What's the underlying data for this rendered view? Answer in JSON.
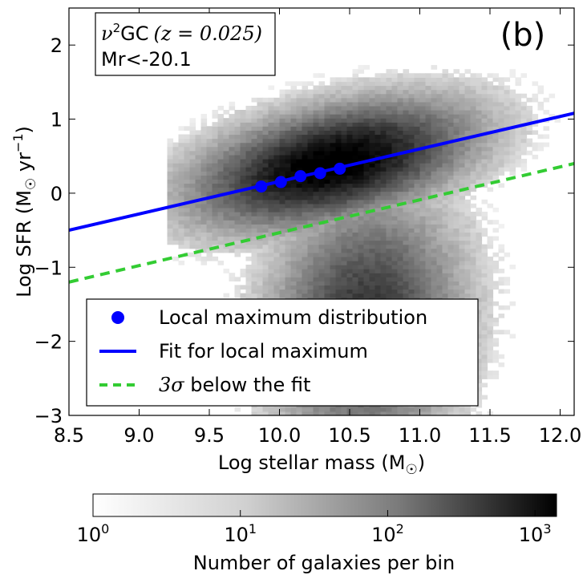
{
  "chart_data": {
    "type": "scatter",
    "panel_label": "(b)",
    "annotation": {
      "line1_nu": "ν",
      "line1_sup": "2",
      "line1_gc": "GC",
      "line1_z": "(z = 0.025)",
      "line2": "Mr<-20.1"
    },
    "xlabel_main": "Log stellar mass (M",
    "xlabel_sun": "☉",
    "xlabel_close": ")",
    "ylabel_main": "Log SFR (M",
    "ylabel_sun": "☉",
    "ylabel_unit": " yr",
    "ylabel_exp": "−1",
    "ylabel_close": ")",
    "xlim": [
      8.5,
      12.1
    ],
    "ylim": [
      -3,
      2.5
    ],
    "x_ticks": [
      "8.5",
      "9.0",
      "9.5",
      "10.0",
      "10.5",
      "11.0",
      "11.5",
      "12.0"
    ],
    "y_ticks": [
      "−3",
      "−2",
      "−1",
      "0",
      "1",
      "2"
    ],
    "series": [
      {
        "name": "Local maximum distribution",
        "kind": "points",
        "color": "#0000ff",
        "x": [
          9.87,
          10.01,
          10.15,
          10.29,
          10.43
        ],
        "y": [
          0.09,
          0.15,
          0.23,
          0.27,
          0.33
        ]
      },
      {
        "name": "Fit for local maximum",
        "kind": "line",
        "color": "#0000ff",
        "x": [
          8.5,
          12.1
        ],
        "y": [
          -0.5,
          1.08
        ]
      },
      {
        "name": "3σ below the fit",
        "kind": "dashed-line",
        "color": "#33cc33",
        "x": [
          8.5,
          12.1
        ],
        "y": [
          -1.2,
          0.4
        ]
      }
    ],
    "legend": {
      "placement": "lower-left",
      "entries": [
        "Local maximum distribution",
        "Fit for local maximum",
        "3σ below the fit"
      ],
      "entry3_sigma": "3σ",
      "entry3_rest": " below the fit"
    },
    "density": {
      "type": "heatmap",
      "colormap": "Greys",
      "scale": "log",
      "colorbar_label": "Number of galaxies per bin",
      "colorbar_ticks": [
        {
          "base": "10",
          "exp": "0"
        },
        {
          "base": "10",
          "exp": "1"
        },
        {
          "base": "10",
          "exp": "2"
        },
        {
          "base": "10",
          "exp": "3"
        }
      ],
      "range": [
        1,
        1400
      ]
    }
  }
}
